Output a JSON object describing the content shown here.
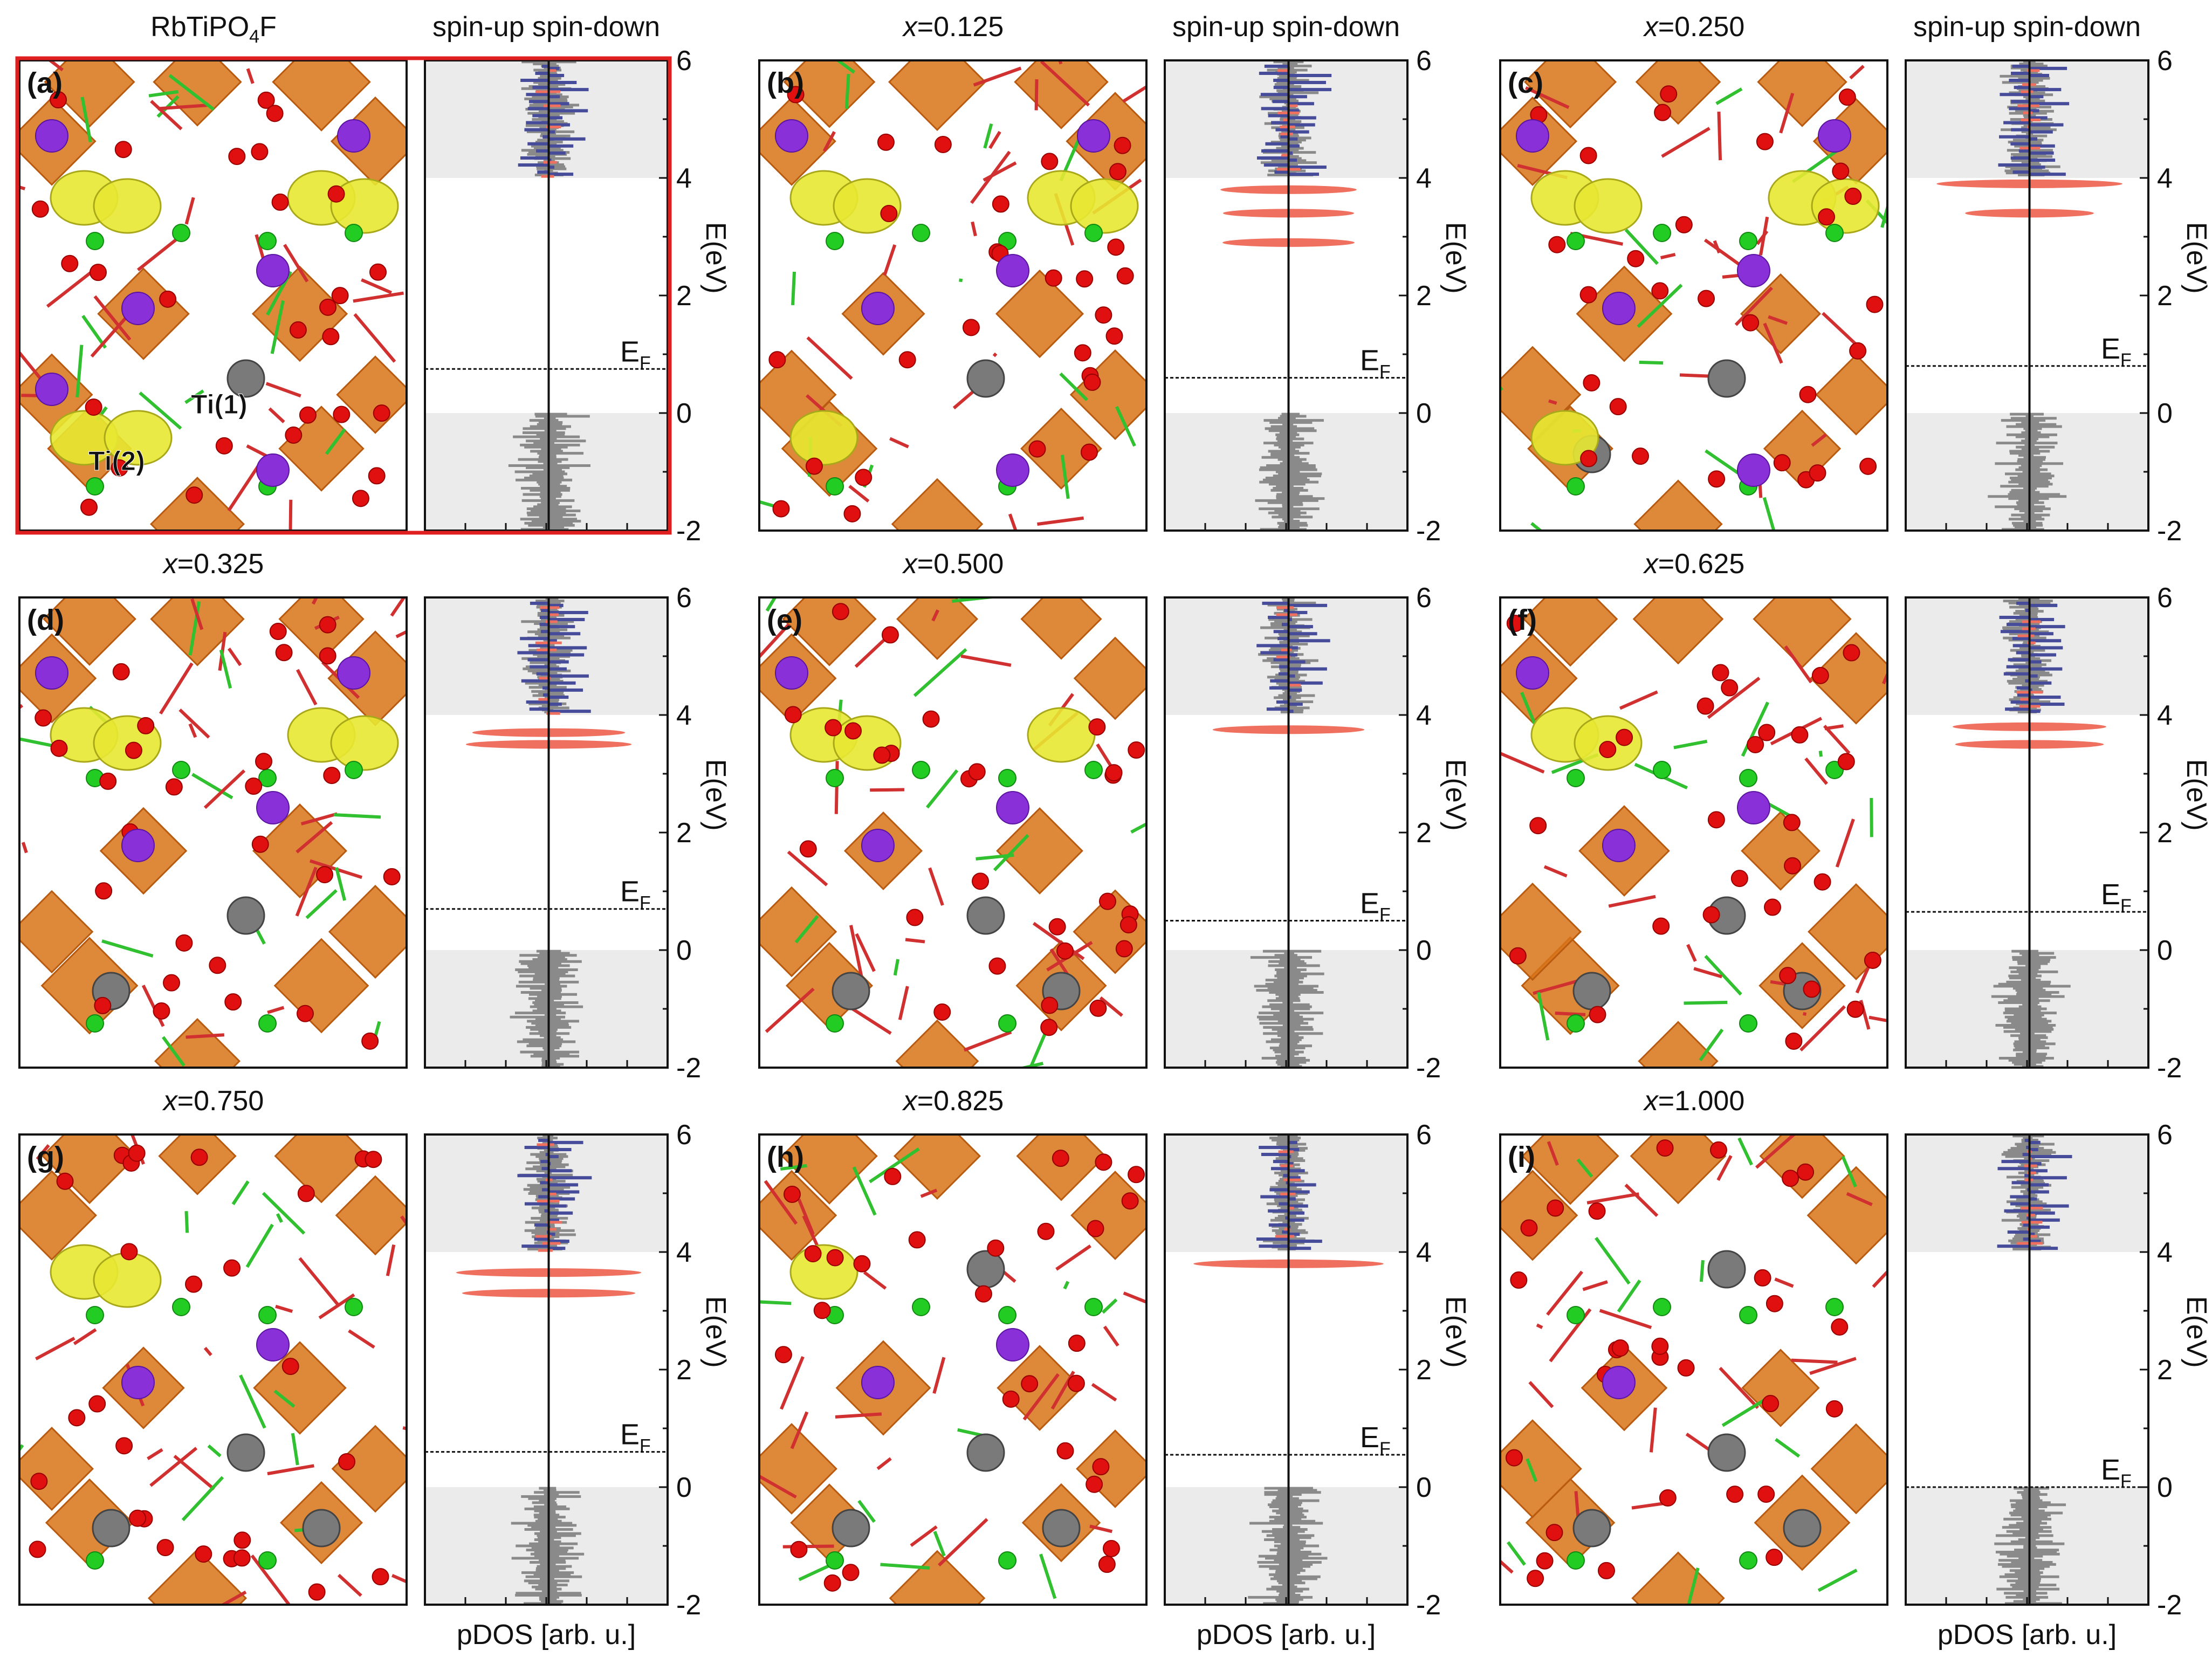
{
  "figure": {
    "spin_labels": "spin-up spin-down",
    "fermi_label": "E",
    "fermi_sub": "F",
    "energy_axis_label": "E(eV)",
    "energy_range_eV": [
      -2,
      6
    ],
    "energy_ticks": [
      "6",
      "4",
      "2",
      "0",
      "-2"
    ],
    "xlabel": "pDOS [arb. u.]",
    "site_labels": [
      "Ti(1)",
      "Ti(2)"
    ],
    "colors": {
      "spin_up_channel": "#f0705f",
      "spin_down_channel": "#464c9a",
      "total_dos": "#8a8a8a",
      "shade": "#ebebeb",
      "highlight_frame": "#e02020",
      "ti": "#7a7a7a",
      "o": "#e01010",
      "f": "#22cc22",
      "rb": "#8a30d8",
      "polyhedra": "#d87418",
      "isosurface": "#e8e832"
    }
  },
  "panels": [
    {
      "tag": "(a)",
      "title": "RbTiPO",
      "title_sub": "4",
      "title_tail": "F",
      "fermi_eV": 0.75,
      "gap_states_eV": []
    },
    {
      "tag": "(b)",
      "title_prefix": "x",
      "title": "=0.125",
      "fermi_eV": 0.6,
      "gap_states_eV": [
        2.9,
        3.4,
        3.8
      ]
    },
    {
      "tag": "(c)",
      "title_prefix": "x",
      "title": "=0.250",
      "fermi_eV": 0.8,
      "gap_states_eV": [
        3.4,
        3.9
      ]
    },
    {
      "tag": "(d)",
      "title_prefix": "x",
      "title": "=0.325",
      "fermi_eV": 0.7,
      "gap_states_eV": [
        3.5,
        3.7
      ]
    },
    {
      "tag": "(e)",
      "title_prefix": "x",
      "title": "=0.500",
      "fermi_eV": 0.5,
      "gap_states_eV": [
        3.75
      ]
    },
    {
      "tag": "(f)",
      "title_prefix": "x",
      "title": "=0.625",
      "fermi_eV": 0.65,
      "gap_states_eV": [
        3.5,
        3.8
      ]
    },
    {
      "tag": "(g)",
      "title_prefix": "x",
      "title": "=0.750",
      "fermi_eV": 0.6,
      "gap_states_eV": [
        3.3,
        3.65
      ]
    },
    {
      "tag": "(h)",
      "title_prefix": "x",
      "title": "=0.825",
      "fermi_eV": 0.55,
      "gap_states_eV": [
        3.8
      ]
    },
    {
      "tag": "(i)",
      "title_prefix": "x",
      "title": "=1.000",
      "fermi_eV": 0.0,
      "gap_states_eV": []
    }
  ]
}
